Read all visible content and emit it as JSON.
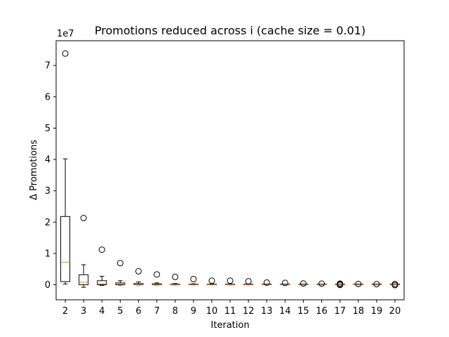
{
  "chart_data": {
    "type": "box",
    "title": "Promotions reduced across i (cache size = 0.01)",
    "xlabel": "Iteration",
    "ylabel": "Δ Promotions",
    "y_offset_label": "1e7",
    "ylim": [
      -4800000,
      77900000
    ],
    "yticks": [
      0,
      10000000,
      20000000,
      30000000,
      40000000,
      50000000,
      60000000,
      70000000
    ],
    "ytick_labels": [
      "0",
      "1",
      "2",
      "3",
      "4",
      "5",
      "6",
      "7"
    ],
    "categories": [
      "2",
      "3",
      "4",
      "5",
      "6",
      "7",
      "8",
      "9",
      "10",
      "11",
      "12",
      "13",
      "14",
      "15",
      "16",
      "17",
      "18",
      "19",
      "20"
    ],
    "colors": {
      "box": "#000000",
      "median": "#ff7f0e"
    },
    "boxes": [
      {
        "whislo": 200000,
        "q1": 1000000,
        "med": 7200000,
        "q3": 21800000,
        "whishi": 40200000,
        "fliers": [
          73800000
        ]
      },
      {
        "whislo": -800000,
        "q1": 0,
        "med": 800000,
        "q3": 3200000,
        "whishi": 6400000,
        "fliers": [
          21300000
        ]
      },
      {
        "whislo": -200000,
        "q1": 0,
        "med": 300000,
        "q3": 1300000,
        "whishi": 2700000,
        "fliers": [
          11200000
        ]
      },
      {
        "whislo": -100000,
        "q1": 0,
        "med": 200000,
        "q3": 600000,
        "whishi": 1300000,
        "fliers": [
          6900000
        ]
      },
      {
        "whislo": -50000,
        "q1": 0,
        "med": 100000,
        "q3": 400000,
        "whishi": 900000,
        "fliers": [
          4300000
        ]
      },
      {
        "whislo": -50000,
        "q1": 0,
        "med": 100000,
        "q3": 300000,
        "whishi": 600000,
        "fliers": [
          3300000
        ]
      },
      {
        "whislo": -30000,
        "q1": 0,
        "med": 60000,
        "q3": 200000,
        "whishi": 400000,
        "fliers": [
          2500000
        ]
      },
      {
        "whislo": -20000,
        "q1": 0,
        "med": 50000,
        "q3": 150000,
        "whishi": 300000,
        "fliers": [
          1800000
        ]
      },
      {
        "whislo": -20000,
        "q1": 0,
        "med": 40000,
        "q3": 120000,
        "whishi": 250000,
        "fliers": [
          1300000
        ]
      },
      {
        "whislo": -20000,
        "q1": 0,
        "med": 30000,
        "q3": 100000,
        "whishi": 200000,
        "fliers": [
          1300000
        ]
      },
      {
        "whislo": -20000,
        "q1": 0,
        "med": 30000,
        "q3": 80000,
        "whishi": 170000,
        "fliers": [
          1100000
        ]
      },
      {
        "whislo": -20000,
        "q1": 0,
        "med": 20000,
        "q3": 60000,
        "whishi": 130000,
        "fliers": [
          700000
        ]
      },
      {
        "whislo": -20000,
        "q1": 0,
        "med": 20000,
        "q3": 50000,
        "whishi": 110000,
        "fliers": [
          600000
        ]
      },
      {
        "whislo": -20000,
        "q1": 0,
        "med": 15000,
        "q3": 40000,
        "whishi": 90000,
        "fliers": [
          400000
        ]
      },
      {
        "whislo": -20000,
        "q1": 0,
        "med": 10000,
        "q3": 35000,
        "whishi": 80000,
        "fliers": [
          350000
        ]
      },
      {
        "whislo": -20000,
        "q1": 0,
        "med": 10000,
        "q3": 30000,
        "whishi": 70000,
        "fliers": [
          350000,
          150000,
          -60000
        ]
      },
      {
        "whislo": -20000,
        "q1": 0,
        "med": 10000,
        "q3": 25000,
        "whishi": 60000,
        "fliers": [
          250000
        ]
      },
      {
        "whislo": -20000,
        "q1": 0,
        "med": 10000,
        "q3": 25000,
        "whishi": 60000,
        "fliers": [
          200000
        ]
      },
      {
        "whislo": -20000,
        "q1": 0,
        "med": 10000,
        "q3": 20000,
        "whishi": 50000,
        "fliers": [
          200000,
          -100000
        ]
      }
    ]
  }
}
